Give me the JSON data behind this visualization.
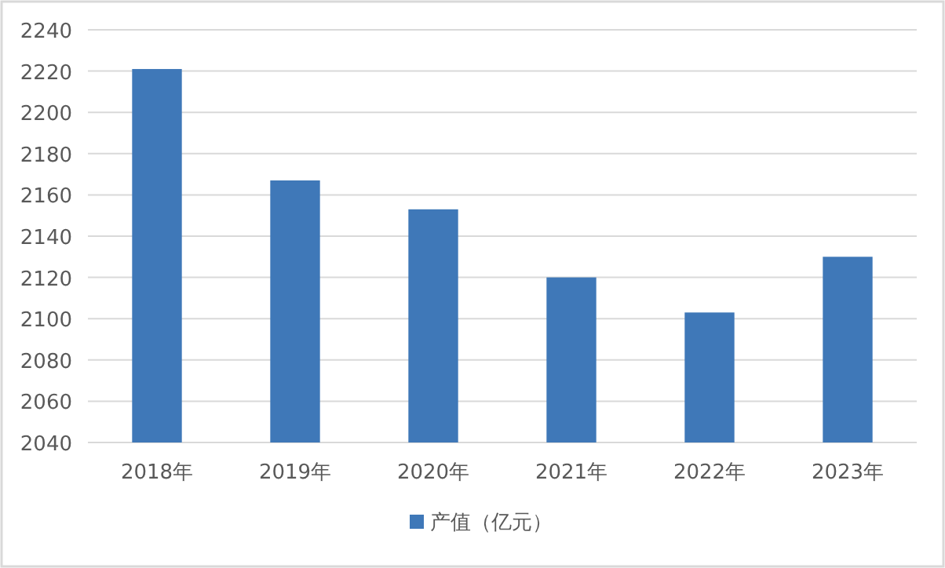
{
  "chart_data": {
    "type": "bar",
    "categories": [
      "2018年",
      "2019年",
      "2020年",
      "2021年",
      "2022年",
      "2023年"
    ],
    "series": [
      {
        "name": "产值（亿元）",
        "color": "#3f78b8",
        "values": [
          2221,
          2167,
          2153,
          2120,
          2103,
          2130
        ]
      }
    ],
    "ylim": [
      2040,
      2240
    ],
    "yticks": [
      2040,
      2060,
      2080,
      2100,
      2120,
      2140,
      2160,
      2180,
      2200,
      2220,
      2240
    ],
    "grid": "y",
    "legend": "bottom"
  }
}
